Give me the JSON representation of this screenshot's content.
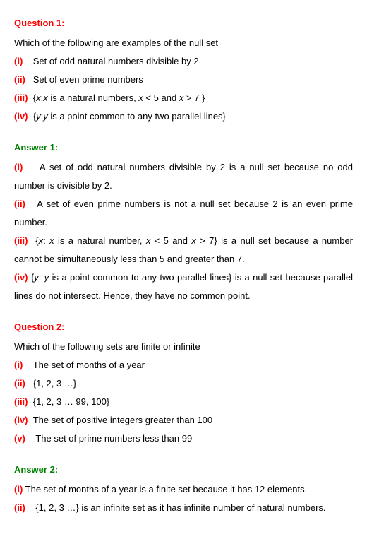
{
  "q1": {
    "heading": "Question 1:",
    "prompt": "Which of the following are examples of the null set",
    "i_label": "(i)",
    "i_text": "Set of odd natural numbers divisible by 2",
    "ii_label": "(ii)",
    "ii_text": "Set of even prime numbers",
    "iii_label": "(iii)",
    "iii_pre": "{",
    "iii_var1": "x",
    "iii_mid1": ":",
    "iii_var2": "x",
    "iii_mid2": " is a natural numbers, ",
    "iii_var3": "x",
    "iii_mid3": " < 5 and ",
    "iii_var4": "x",
    "iii_mid4": " > 7 }",
    "iv_label": "(iv)",
    "iv_pre": "{",
    "iv_var1": "y",
    "iv_mid1": ":",
    "iv_var2": "y",
    "iv_mid2": " is a point common to any two parallel lines}"
  },
  "a1": {
    "heading": "Answer 1:",
    "i_label": "(i)",
    "i_text": "A set of odd natural numbers divisible by 2 is a null set because no odd number is divisible by 2.",
    "ii_label": "(ii)",
    "ii_text": "A set of even prime numbers is not a null set because 2 is an even prime number.",
    "iii_label": "(iii)",
    "iii_pre": "{",
    "iii_var1": "x",
    "iii_mid1": ": ",
    "iii_var2": "x",
    "iii_mid2": " is a natural number, ",
    "iii_var3": "x",
    "iii_mid3": " < 5 and ",
    "iii_var4": "x",
    "iii_mid4": " > 7} is a null set because a number cannot be simultaneously less than 5 and greater than 7.",
    "iv_label": "(iv)",
    "iv_pre": "{",
    "iv_var1": "y",
    "iv_mid1": ": ",
    "iv_var2": "y",
    "iv_mid2": " is a point common to any two parallel lines} is a null set because parallel lines do not intersect. Hence, they have no common point."
  },
  "q2": {
    "heading": "Question 2:",
    "prompt": "Which of the following sets are finite or infinite",
    "i_label": "(i)",
    "i_text": "The set of months of a year",
    "ii_label": "(ii)",
    "ii_text": "{1, 2, 3 …}",
    "iii_label": "(iii)",
    "iii_text": "{1, 2, 3 … 99, 100}",
    "iv_label": "(iv)",
    "iv_text": "The set of positive integers greater than 100",
    "v_label": "(v)",
    "v_text": "The set of prime numbers less than 99"
  },
  "a2": {
    "heading": "Answer 2:",
    "i_label": "(i)",
    "i_text": " The set of months of a year is a finite set because it has 12 elements.",
    "ii_label": "(ii)",
    "ii_text": "{1, 2, 3 …} is an infinite set as it has infinite number of natural numbers."
  }
}
